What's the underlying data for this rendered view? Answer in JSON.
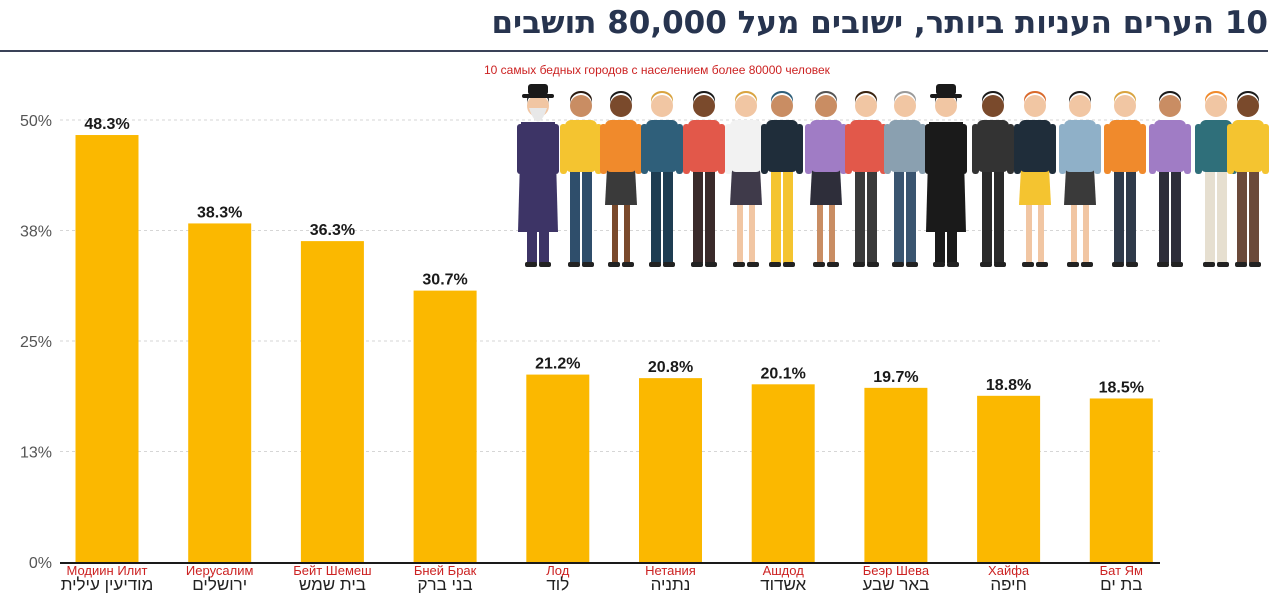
{
  "colors": {
    "bar": "#fbb800",
    "title": "#27344f",
    "subtitle": "#cc2222",
    "ru_label": "#cc2222",
    "he_label": "#222222"
  },
  "illustration": "group-of-diverse-people-illustration",
  "chart_data": {
    "type": "bar",
    "title": "10 הערים העניות ביותר, ישובים מעל 80,000 תושבים",
    "subtitle": "10 самых бедных городов с населением более 80000 человек",
    "ylim": [
      0,
      50
    ],
    "yticks": [
      0,
      12.5,
      25,
      37.5,
      50
    ],
    "ytick_labels": [
      "0%",
      "13%",
      "25%",
      "38%",
      "50%"
    ],
    "grid": true,
    "categories": [
      {
        "ru": "Модиин Илит",
        "he": "מודיעין עילית"
      },
      {
        "ru": "Иерусалим",
        "he": "ירושלים"
      },
      {
        "ru": "Бейт Шемеш",
        "he": "בית שמש"
      },
      {
        "ru": "Бней Брак",
        "he": "בני ברק"
      },
      {
        "ru": "Лод",
        "he": "לוד"
      },
      {
        "ru": "Нетания",
        "he": "נתניה"
      },
      {
        "ru": "Ашдод",
        "he": "אשדוד"
      },
      {
        "ru": "Беэр Шева",
        "he": "באר שבע"
      },
      {
        "ru": "Хайфа",
        "he": "חיפה"
      },
      {
        "ru": "Бат Ям",
        "he": "בת ים"
      }
    ],
    "values": [
      48.3,
      38.3,
      36.3,
      30.7,
      21.2,
      20.8,
      20.1,
      19.7,
      18.8,
      18.5
    ],
    "value_labels": [
      "48.3%",
      "38.3%",
      "36.3%",
      "30.7%",
      "21.2%",
      "20.8%",
      "20.1%",
      "19.7%",
      "18.8%",
      "18.5%"
    ]
  }
}
